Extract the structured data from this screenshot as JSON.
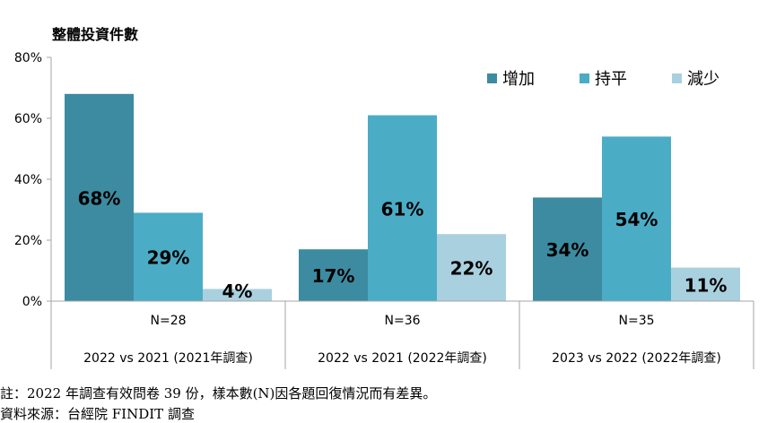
{
  "chart_data": {
    "type": "bar",
    "title": "整體投資件數",
    "yticks": [
      "80%",
      "60%",
      "40%",
      "20%",
      "0%"
    ],
    "ylim": [
      0,
      80
    ],
    "legend_position": "top-right",
    "series": [
      {
        "name": "增加",
        "color": "#3c8ba1",
        "values": [
          68,
          17,
          34
        ],
        "labels": [
          "68%",
          "17%",
          "34%"
        ]
      },
      {
        "name": "持平",
        "color": "#4bacc6",
        "values": [
          29,
          61,
          54
        ],
        "labels": [
          "29%",
          "61%",
          "54%"
        ]
      },
      {
        "name": "減少",
        "color": "#a9d0de",
        "values": [
          4,
          22,
          11
        ],
        "labels": [
          "4%",
          "22%",
          "11%"
        ]
      }
    ],
    "groups": [
      {
        "n_label": "N=28",
        "category": "2022 vs 2021 (2021年調查)"
      },
      {
        "n_label": "N=36",
        "category": "2022 vs 2021 (2022年調查)"
      },
      {
        "n_label": "N=35",
        "category": "2023 vs 2022 (2022年調查)"
      }
    ]
  },
  "notes": {
    "note": "註：2022 年調查有效問卷 39 份，樣本數(N)因各題回復情況而有差異。",
    "source": "資料來源：台經院 FINDIT 調查"
  }
}
